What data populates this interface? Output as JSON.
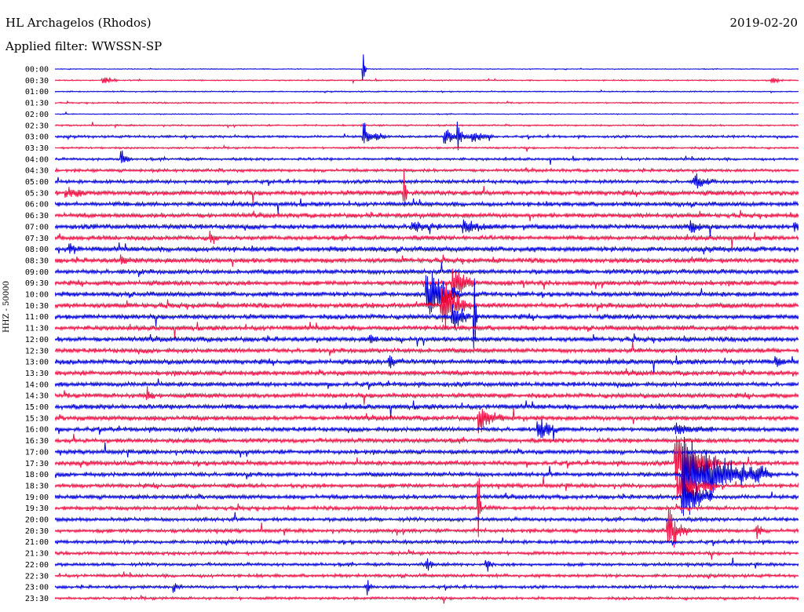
{
  "header": {
    "station": "HL Archagelos (Rhodos)",
    "date": "2019-02-20",
    "filter": "Applied filter: WWSSN-SP"
  },
  "chart_data": {
    "type": "line",
    "title": "HL Archagelos (Rhodos)",
    "ylabel": "HHZ - 50000",
    "trace_colors": [
      "#0000dd",
      "#ee1144"
    ],
    "row_labels": [
      "00:00",
      "00:30",
      "01:00",
      "01:30",
      "02:00",
      "02:30",
      "03:00",
      "03:30",
      "04:00",
      "04:30",
      "05:00",
      "05:30",
      "06:00",
      "06:30",
      "07:00",
      "07:30",
      "08:00",
      "08:30",
      "09:00",
      "09:30",
      "10:00",
      "10:30",
      "11:00",
      "11:30",
      "12:00",
      "12:30",
      "13:00",
      "13:30",
      "14:00",
      "14:30",
      "15:00",
      "15:30",
      "16:00",
      "16:30",
      "17:00",
      "17:30",
      "18:00",
      "18:30",
      "19:00",
      "19:30",
      "20:00",
      "20:30",
      "21:00",
      "21:30",
      "22:00",
      "22:30",
      "23:00",
      "23:30"
    ],
    "noise_level": [
      0.4,
      0.6,
      0.6,
      0.7,
      0.5,
      0.8,
      1.2,
      1,
      1.3,
      1.5,
      1.8,
      2.5,
      2.2,
      2.3,
      2.5,
      2.3,
      2.6,
      2.5,
      2.4,
      2.4,
      2.4,
      2.6,
      2.5,
      2.4,
      2.5,
      2.4,
      2.5,
      2.4,
      2.3,
      2.4,
      2.5,
      2.4,
      2.3,
      2.3,
      2.2,
      2.3,
      2.2,
      2.1,
      2.1,
      2,
      1.9,
      1.9,
      1.8,
      1.7,
      1.6,
      1.6,
      1.5,
      1.4
    ],
    "events": [
      {
        "row": 1,
        "t": 0.065,
        "amp": 10,
        "dur": 0.02
      },
      {
        "row": 1,
        "t": 0.965,
        "amp": 7,
        "dur": 0.015
      },
      {
        "row": 0,
        "t": 0.415,
        "amp": 28,
        "dur": 0.004
      },
      {
        "row": 6,
        "t": 0.415,
        "amp": 20,
        "dur": 0.03
      },
      {
        "row": 6,
        "t": 0.525,
        "amp": 15,
        "dur": 0.035
      },
      {
        "row": 6,
        "t": 0.542,
        "amp": 35,
        "dur": 0.006
      },
      {
        "row": 6,
        "t": 0.56,
        "amp": 10,
        "dur": 0.03
      },
      {
        "row": 8,
        "t": 0.09,
        "amp": 16,
        "dur": 0.012
      },
      {
        "row": 10,
        "t": 0.86,
        "amp": 14,
        "dur": 0.025
      },
      {
        "row": 11,
        "t": 0.015,
        "amp": 10,
        "dur": 0.03
      },
      {
        "row": 11,
        "t": 0.47,
        "amp": 40,
        "dur": 0.004
      },
      {
        "row": 14,
        "t": 0.48,
        "amp": 8,
        "dur": 0.04
      },
      {
        "row": 14,
        "t": 0.55,
        "amp": 10,
        "dur": 0.05
      },
      {
        "row": 14,
        "t": 0.855,
        "amp": 12,
        "dur": 0.02
      },
      {
        "row": 14,
        "t": 0.995,
        "amp": 14,
        "dur": 0.008
      },
      {
        "row": 15,
        "t": 0.21,
        "amp": 16,
        "dur": 0.01
      },
      {
        "row": 16,
        "t": 0.02,
        "amp": 9,
        "dur": 0.012
      },
      {
        "row": 17,
        "t": 0.09,
        "amp": 8,
        "dur": 0.012
      },
      {
        "row": 19,
        "t": 0.535,
        "amp": 32,
        "dur": 0.03
      },
      {
        "row": 20,
        "t": 0.5,
        "amp": 55,
        "dur": 0.045
      },
      {
        "row": 21,
        "t": 0.52,
        "amp": 45,
        "dur": 0.04
      },
      {
        "row": 22,
        "t": 0.535,
        "amp": 30,
        "dur": 0.025
      },
      {
        "row": 22,
        "t": 0.565,
        "amp": 60,
        "dur": 0.004
      },
      {
        "row": 24,
        "t": 0.425,
        "amp": 14,
        "dur": 0.01
      },
      {
        "row": 26,
        "t": 0.45,
        "amp": 12,
        "dur": 0.02
      },
      {
        "row": 26,
        "t": 0.97,
        "amp": 12,
        "dur": 0.012
      },
      {
        "row": 29,
        "t": 0.125,
        "amp": 12,
        "dur": 0.01
      },
      {
        "row": 31,
        "t": 0.57,
        "amp": 20,
        "dur": 0.035
      },
      {
        "row": 32,
        "t": 0.65,
        "amp": 20,
        "dur": 0.025
      },
      {
        "row": 32,
        "t": 0.835,
        "amp": 10,
        "dur": 0.05
      },
      {
        "row": 35,
        "t": 0.835,
        "amp": 60,
        "dur": 0.06
      },
      {
        "row": 36,
        "t": 0.845,
        "amp": 65,
        "dur": 0.12
      },
      {
        "row": 36,
        "t": 0.945,
        "amp": 12,
        "dur": 0.008
      },
      {
        "row": 37,
        "t": 0.84,
        "amp": 35,
        "dur": 0.05
      },
      {
        "row": 38,
        "t": 0.845,
        "amp": 45,
        "dur": 0.04
      },
      {
        "row": 39,
        "t": 0.57,
        "amp": 55,
        "dur": 0.004
      },
      {
        "row": 41,
        "t": 0.825,
        "amp": 40,
        "dur": 0.03
      },
      {
        "row": 41,
        "t": 0.945,
        "amp": 10,
        "dur": 0.01
      },
      {
        "row": 44,
        "t": 0.5,
        "amp": 12,
        "dur": 0.01
      },
      {
        "row": 44,
        "t": 0.58,
        "amp": 14,
        "dur": 0.01
      },
      {
        "row": 46,
        "t": 0.16,
        "amp": 8,
        "dur": 0.012
      },
      {
        "row": 46,
        "t": 0.42,
        "amp": 14,
        "dur": 0.008
      }
    ]
  }
}
